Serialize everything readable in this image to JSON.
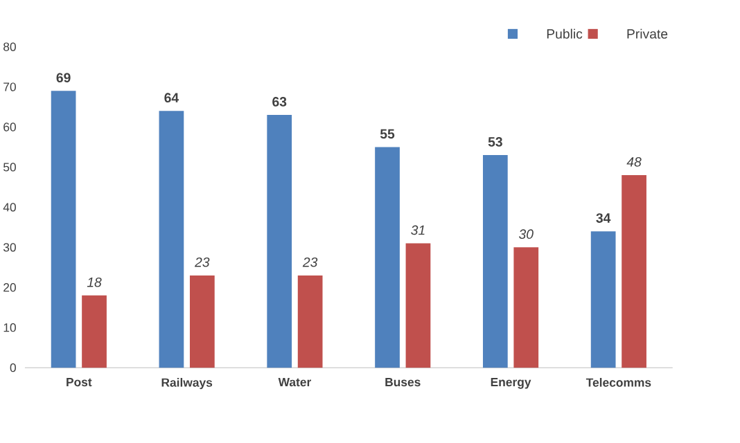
{
  "chart_data": {
    "type": "bar",
    "categories": [
      "Post",
      "Railways",
      "Water",
      "Buses",
      "Energy",
      "Telecomms"
    ],
    "series": [
      {
        "name": "Public",
        "color": "#4f81bd",
        "values": [
          69,
          64,
          63,
          55,
          53,
          34
        ]
      },
      {
        "name": "Private",
        "color": "#c0504d",
        "values": [
          18,
          23,
          23,
          31,
          30,
          48
        ]
      }
    ],
    "ylim": [
      0,
      80
    ],
    "yticks": [
      0,
      10,
      20,
      30,
      40,
      50,
      60,
      70,
      80
    ],
    "grid": false,
    "legend": "top right",
    "data_labels": true
  }
}
